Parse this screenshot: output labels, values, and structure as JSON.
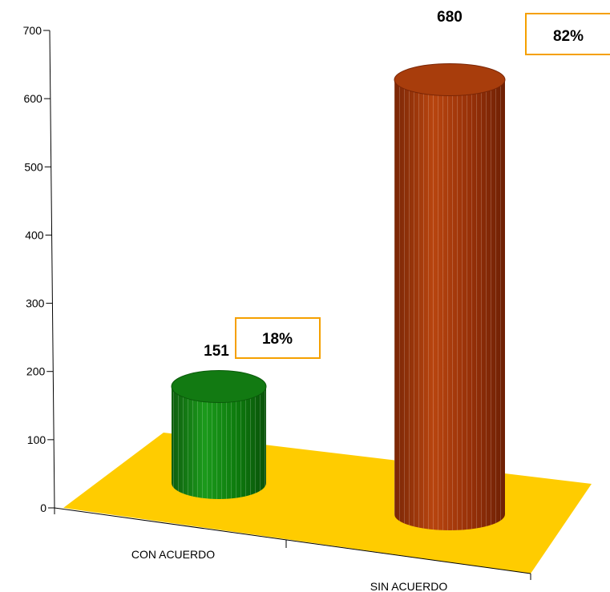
{
  "chart_data": {
    "type": "bar",
    "style": "3d-cylinder",
    "categories": [
      "CON ACUERDO",
      "SIN ACUERDO"
    ],
    "values": [
      151,
      680
    ],
    "percent_labels": [
      "18%",
      "82%"
    ],
    "ylim": [
      0,
      700
    ],
    "yticks": [
      0,
      100,
      200,
      300,
      400,
      500,
      600,
      700
    ],
    "grid": false,
    "colors": {
      "bars": [
        "#0a7d0a",
        "#9a3208"
      ],
      "floor": "#ffcc00",
      "label_box_border": "#f5a000"
    }
  }
}
